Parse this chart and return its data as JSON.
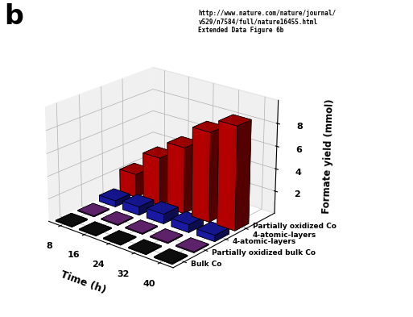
{
  "title_label": "b",
  "url_text": "http://www.nature.com/nature/journal/\nv529/n7584/full/nature16455.html\nExtended Data Figure 6b",
  "zlabel": "Formate yield (mmol)",
  "xlabel": "Time (h)",
  "time_points": [
    8,
    16,
    24,
    32,
    40
  ],
  "time_labels": [
    "8",
    "16",
    "24",
    "32",
    "40"
  ],
  "categories": [
    "Bulk Co",
    "Partially oxidized bulk Co",
    "4-atomic-layers",
    "Partially oxidized Co\n4-atomic-layers"
  ],
  "cat_labels_display": [
    "Bulk Co",
    "Partially oxidized bulk Co",
    "4-atomic-layers",
    "Partially oxidized Co\n4-atomic-layers"
  ],
  "colors": [
    "#111111",
    "#7B2D8B",
    "#1C1CBB",
    "#CC0000"
  ],
  "data_values": [
    [
      0.08,
      0.08,
      0.08,
      0.08,
      0.08
    ],
    [
      0.08,
      0.08,
      0.08,
      0.08,
      0.08
    ],
    [
      0.55,
      0.75,
      0.85,
      0.7,
      0.55
    ],
    [
      2.1,
      4.3,
      5.9,
      7.9,
      9.1
    ]
  ],
  "zlim": [
    0,
    10
  ],
  "zticks": [
    2,
    4,
    6,
    8
  ],
  "background_color": "#ffffff",
  "pane_color": "#f0f0f0",
  "bar_width": 0.7,
  "bar_depth": 5.5,
  "elev": 22,
  "azim": -50
}
